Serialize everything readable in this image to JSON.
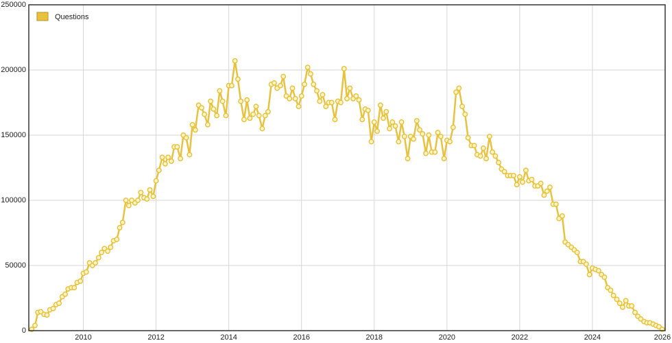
{
  "chart_data": {
    "type": "line",
    "x": [
      2008.58,
      2008.67,
      2008.75,
      2008.83,
      2008.92,
      2009,
      2009.08,
      2009.17,
      2009.25,
      2009.33,
      2009.42,
      2009.5,
      2009.58,
      2009.67,
      2009.75,
      2009.83,
      2009.92,
      2010,
      2010.08,
      2010.17,
      2010.25,
      2010.33,
      2010.42,
      2010.5,
      2010.58,
      2010.67,
      2010.75,
      2010.83,
      2010.92,
      2011,
      2011.08,
      2011.17,
      2011.25,
      2011.33,
      2011.42,
      2011.5,
      2011.58,
      2011.67,
      2011.75,
      2011.83,
      2011.92,
      2012,
      2012.08,
      2012.17,
      2012.25,
      2012.33,
      2012.42,
      2012.5,
      2012.58,
      2012.67,
      2012.75,
      2012.83,
      2012.92,
      2013,
      2013.08,
      2013.17,
      2013.25,
      2013.33,
      2013.42,
      2013.5,
      2013.58,
      2013.67,
      2013.75,
      2013.83,
      2013.92,
      2014,
      2014.08,
      2014.17,
      2014.25,
      2014.33,
      2014.42,
      2014.5,
      2014.58,
      2014.67,
      2014.75,
      2014.83,
      2014.92,
      2015,
      2015.08,
      2015.17,
      2015.25,
      2015.33,
      2015.42,
      2015.5,
      2015.58,
      2015.67,
      2015.75,
      2015.83,
      2015.92,
      2016,
      2016.08,
      2016.17,
      2016.25,
      2016.33,
      2016.42,
      2016.5,
      2016.58,
      2016.67,
      2016.75,
      2016.83,
      2016.92,
      2017,
      2017.08,
      2017.17,
      2017.25,
      2017.33,
      2017.42,
      2017.5,
      2017.58,
      2017.67,
      2017.75,
      2017.83,
      2017.92,
      2018,
      2018.08,
      2018.17,
      2018.25,
      2018.33,
      2018.42,
      2018.5,
      2018.58,
      2018.67,
      2018.75,
      2018.83,
      2018.92,
      2019,
      2019.08,
      2019.17,
      2019.25,
      2019.33,
      2019.42,
      2019.5,
      2019.58,
      2019.67,
      2019.75,
      2019.83,
      2019.92,
      2020,
      2020.08,
      2020.17,
      2020.25,
      2020.33,
      2020.42,
      2020.5,
      2020.58,
      2020.67,
      2020.75,
      2020.83,
      2020.92,
      2021,
      2021.08,
      2021.17,
      2021.25,
      2021.33,
      2021.42,
      2021.5,
      2021.58,
      2021.67,
      2021.75,
      2021.83,
      2021.92,
      2022,
      2022.08,
      2022.17,
      2022.25,
      2022.33,
      2022.42,
      2022.5,
      2022.58,
      2022.67,
      2022.75,
      2022.83,
      2022.92,
      2023,
      2023.08,
      2023.17,
      2023.25,
      2023.33,
      2023.42,
      2023.5,
      2023.58,
      2023.67,
      2023.75,
      2023.83,
      2023.92,
      2024,
      2024.08,
      2024.17,
      2024.25,
      2024.33,
      2024.42,
      2024.5,
      2024.58,
      2024.67,
      2024.75,
      2024.83,
      2024.92,
      2025,
      2025.08,
      2025.17,
      2025.25,
      2025.33,
      2025.42,
      2025.5,
      2025.58,
      2025.67,
      2025.75,
      2025.83,
      2025.92
    ],
    "series": [
      {
        "name": "Questions",
        "color": "#e8c23e",
        "values": [
          1000,
          4000,
          14000,
          14500,
          12500,
          12000,
          16000,
          17000,
          20000,
          21000,
          26000,
          28000,
          32000,
          33000,
          33000,
          37000,
          38000,
          44000,
          45000,
          52000,
          50000,
          52000,
          56000,
          60000,
          63000,
          61000,
          64000,
          69000,
          70000,
          79000,
          83000,
          100000,
          96000,
          100000,
          98000,
          100000,
          106000,
          102000,
          101000,
          108000,
          103000,
          115000,
          123000,
          133000,
          128000,
          133000,
          130000,
          141000,
          141000,
          132000,
          150000,
          148000,
          135000,
          158000,
          154000,
          173000,
          171000,
          166000,
          158000,
          176000,
          170000,
          165000,
          184000,
          176000,
          165000,
          188000,
          188000,
          207000,
          193000,
          176000,
          162000,
          177000,
          163000,
          166000,
          172000,
          165000,
          155000,
          165000,
          168000,
          189000,
          190000,
          186000,
          188000,
          195000,
          180000,
          178000,
          186000,
          178000,
          172000,
          180000,
          189000,
          202000,
          197000,
          189000,
          184000,
          176000,
          181000,
          172000,
          175000,
          175000,
          162000,
          176000,
          175000,
          201000,
          178000,
          186000,
          178000,
          180000,
          177000,
          162000,
          170000,
          169000,
          145000,
          160000,
          153000,
          173000,
          163000,
          168000,
          155000,
          160000,
          157000,
          145000,
          160000,
          149000,
          132000,
          149000,
          147000,
          161000,
          154000,
          151000,
          136000,
          150000,
          137000,
          137000,
          152000,
          149000,
          132000,
          146000,
          145000,
          156000,
          183000,
          186000,
          172000,
          166000,
          148000,
          142000,
          142000,
          135000,
          134000,
          140000,
          132000,
          149000,
          137000,
          134000,
          129000,
          124000,
          122000,
          119000,
          119000,
          119000,
          112000,
          118000,
          114000,
          123000,
          115000,
          116000,
          111000,
          111000,
          113000,
          104000,
          107000,
          110000,
          97000,
          97000,
          86000,
          88000,
          68000,
          66000,
          64000,
          62000,
          60000,
          53000,
          53000,
          51000,
          43000,
          48000,
          47000,
          46000,
          43000,
          41000,
          33000,
          31000,
          27000,
          24000,
          21000,
          18000,
          23000,
          19000,
          19000,
          14000,
          11000,
          9000,
          7000,
          6000,
          6000,
          5000,
          4000,
          3000,
          1000
        ]
      }
    ],
    "xlim": [
      2008.5,
      2026
    ],
    "xticks": [
      2010,
      2012,
      2014,
      2016,
      2018,
      2020,
      2022,
      2024,
      2026
    ],
    "ylim": [
      0,
      250000
    ],
    "yticks": [
      0,
      50000,
      100000,
      150000,
      200000,
      250000
    ],
    "grid": true,
    "legend": "top-left"
  }
}
